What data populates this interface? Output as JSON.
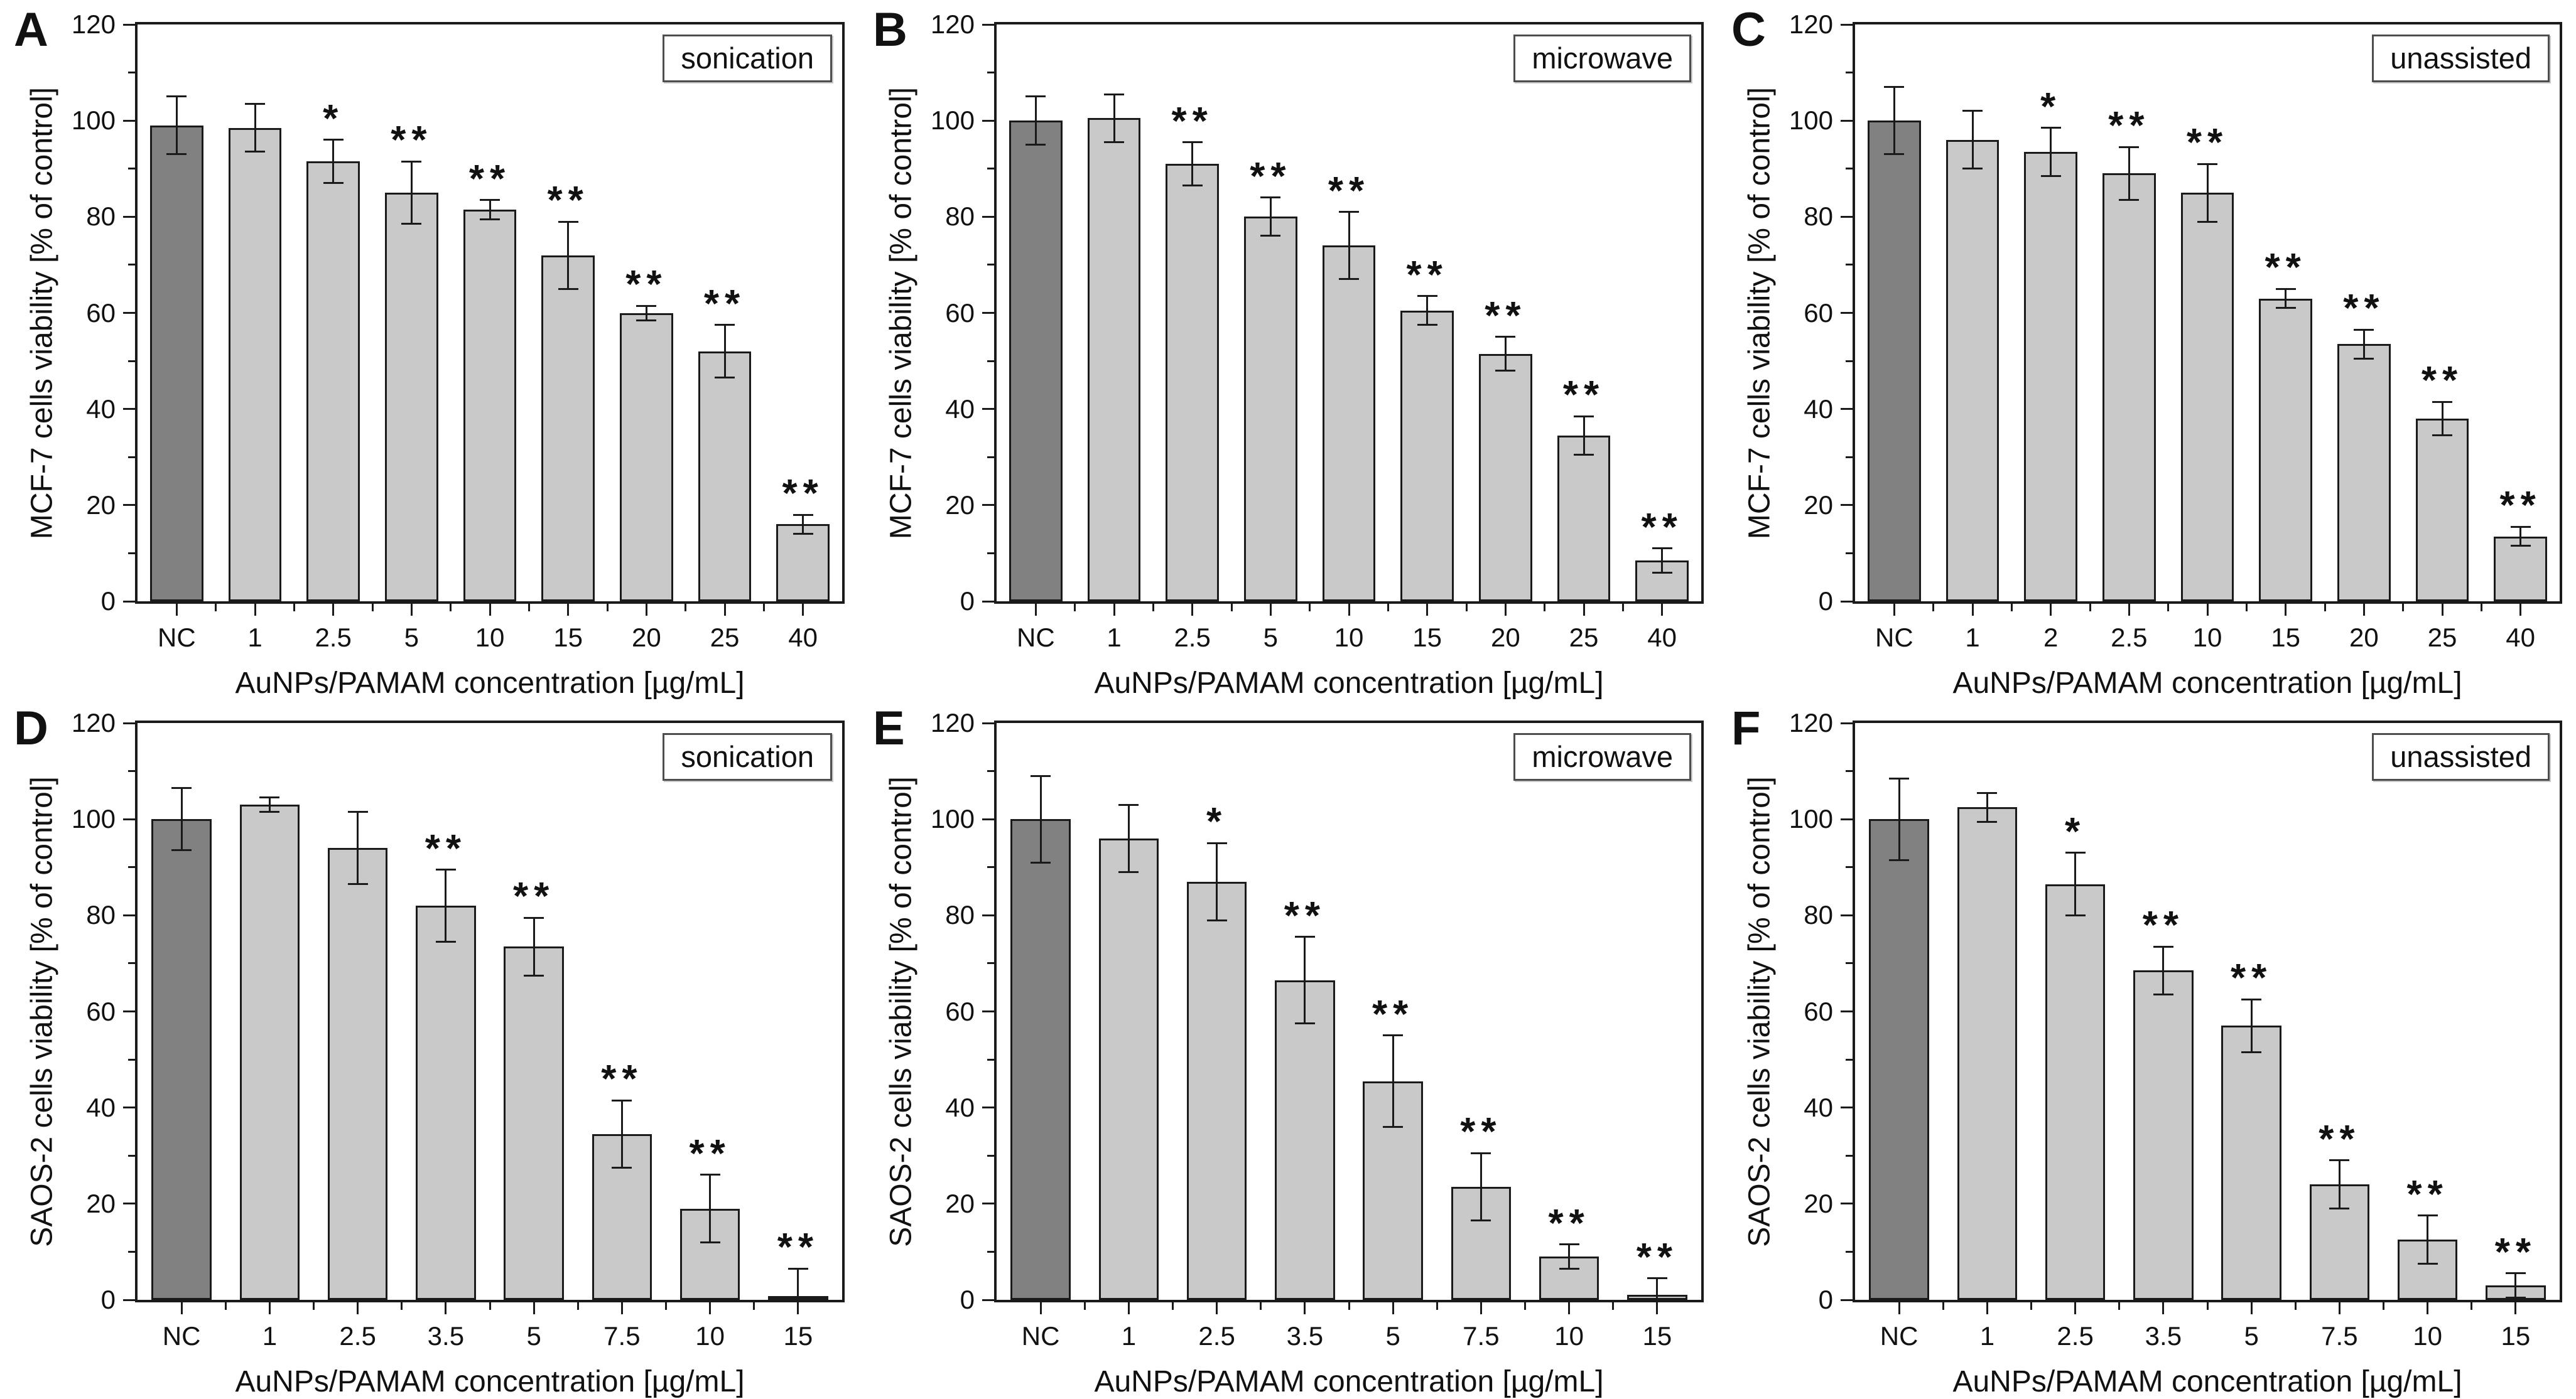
{
  "colors": {
    "nc_bar_fill": "#818181",
    "bar_fill": "#c9c9c9",
    "bar_border": "#1a1a1a",
    "axis": "#1a1a1a",
    "legend_border": "#4d4d4d",
    "background": "#ffffff"
  },
  "chart_data": [
    {
      "type": "bar",
      "panel_label": "A",
      "legend": "sonication",
      "ylabel": "MCF-7 cells viability [% of control]",
      "xlabel": "AuNPs/PAMAM concentration [µg/mL]",
      "ylim": [
        0,
        120
      ],
      "ytick_major_step": 20,
      "ytick_minor_step": 10,
      "categories": [
        "NC",
        "1",
        "2.5",
        "5",
        "10",
        "15",
        "20",
        "25",
        "40"
      ],
      "values": [
        99,
        98.5,
        91.5,
        85,
        81.5,
        72,
        60,
        52,
        16
      ],
      "errors": [
        6,
        5,
        4.5,
        6.5,
        2,
        7,
        1.5,
        5.5,
        2
      ],
      "significance": [
        "",
        "",
        "*",
        "**",
        "**",
        "**",
        "**",
        "**",
        "**"
      ]
    },
    {
      "type": "bar",
      "panel_label": "B",
      "legend": "microwave",
      "ylabel": "MCF-7 cells viability [% of control]",
      "xlabel": "AuNPs/PAMAM concentration [µg/mL]",
      "ylim": [
        0,
        120
      ],
      "ytick_major_step": 20,
      "ytick_minor_step": 10,
      "categories": [
        "NC",
        "1",
        "2.5",
        "5",
        "10",
        "15",
        "20",
        "25",
        "40"
      ],
      "values": [
        100,
        100.5,
        91,
        80,
        74,
        60.5,
        51.5,
        34.5,
        8.5
      ],
      "errors": [
        5,
        5,
        4.5,
        4,
        7,
        3,
        3.5,
        4,
        2.5
      ],
      "significance": [
        "",
        "",
        "**",
        "**",
        "**",
        "**",
        "**",
        "**",
        "**"
      ]
    },
    {
      "type": "bar",
      "panel_label": "C",
      "legend": "unassisted",
      "ylabel": "MCF-7 cells viability [% of control]",
      "xlabel": "AuNPs/PAMAM concentration [µg/mL]",
      "ylim": [
        0,
        120
      ],
      "ytick_major_step": 20,
      "ytick_minor_step": 10,
      "categories": [
        "NC",
        "1",
        "2",
        "2.5",
        "10",
        "15",
        "20",
        "25",
        "40"
      ],
      "values": [
        100,
        96,
        93.5,
        89,
        85,
        63,
        53.5,
        38,
        13.5
      ],
      "errors": [
        7,
        6,
        5,
        5.5,
        6,
        2,
        3,
        3.5,
        2
      ],
      "significance": [
        "",
        "",
        "*",
        "**",
        "**",
        "**",
        "**",
        "**",
        "**"
      ]
    },
    {
      "type": "bar",
      "panel_label": "D",
      "legend": "sonication",
      "ylabel": "SAOS-2 cells viability [% of control]",
      "xlabel": "AuNPs/PAMAM concentration [µg/mL]",
      "ylim": [
        0,
        120
      ],
      "ytick_major_step": 20,
      "ytick_minor_step": 10,
      "categories": [
        "NC",
        "1",
        "2.5",
        "3.5",
        "5",
        "7.5",
        "10",
        "15"
      ],
      "values": [
        100,
        103,
        94,
        82,
        73.5,
        34.5,
        19,
        0.5
      ],
      "errors": [
        6.5,
        1.5,
        7.5,
        7.5,
        6,
        7,
        7,
        6
      ],
      "significance": [
        "",
        "",
        "",
        "**",
        "**",
        "**",
        "**",
        "**"
      ]
    },
    {
      "type": "bar",
      "panel_label": "E",
      "legend": "microwave",
      "ylabel": "SAOS-2 cells viability [% of control]",
      "xlabel": "AuNPs/PAMAM concentration [µg/mL]",
      "ylim": [
        0,
        120
      ],
      "ytick_major_step": 20,
      "ytick_minor_step": 10,
      "categories": [
        "NC",
        "1",
        "2.5",
        "3.5",
        "5",
        "7.5",
        "10",
        "15"
      ],
      "values": [
        100,
        96,
        87,
        66.5,
        45.5,
        23.5,
        9,
        1
      ],
      "errors": [
        9,
        7,
        8,
        9,
        9.5,
        7,
        2.5,
        3.5
      ],
      "significance": [
        "",
        "",
        "*",
        "**",
        "**",
        "**",
        "**",
        "**"
      ]
    },
    {
      "type": "bar",
      "panel_label": "F",
      "legend": "unassisted",
      "ylabel": "SAOS-2 cells viability [% of control]",
      "xlabel": "AuNPs/PAMAM concentration [µg/mL]",
      "ylim": [
        0,
        120
      ],
      "ytick_major_step": 20,
      "ytick_minor_step": 10,
      "categories": [
        "NC",
        "1",
        "2.5",
        "3.5",
        "5",
        "7.5",
        "10",
        "15"
      ],
      "values": [
        100,
        102.5,
        86.5,
        68.5,
        57,
        24,
        12.5,
        3
      ],
      "errors": [
        8.5,
        3,
        6.5,
        5,
        5.5,
        5,
        5,
        2.5
      ],
      "significance": [
        "",
        "",
        "*",
        "**",
        "**",
        "**",
        "**",
        "**"
      ]
    }
  ]
}
